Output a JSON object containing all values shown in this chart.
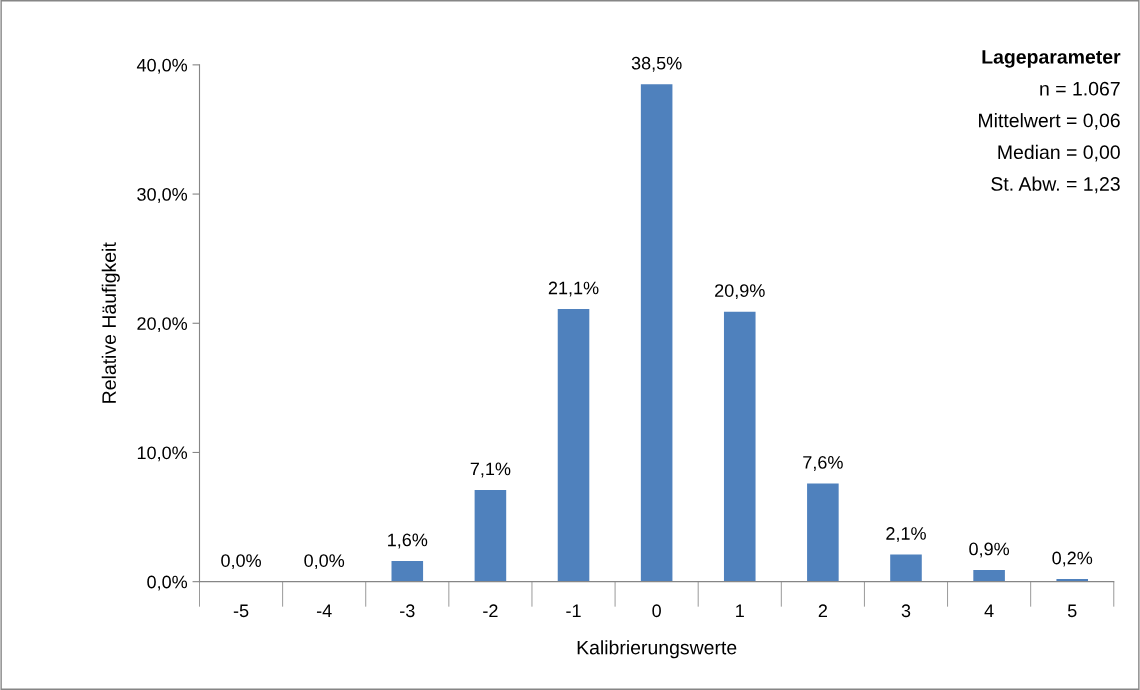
{
  "chart_data": {
    "type": "bar",
    "xlabel": "Kalibrierungswerte",
    "ylabel": "Relative Häufigkeit",
    "categories": [
      "-5",
      "-4",
      "-3",
      "-2",
      "-1",
      "0",
      "1",
      "2",
      "3",
      "4",
      "5"
    ],
    "values": [
      0.0,
      0.0,
      1.6,
      7.1,
      21.1,
      38.5,
      20.9,
      7.6,
      2.1,
      0.9,
      0.2
    ],
    "value_labels": [
      "0,0%",
      "0,0%",
      "1,6%",
      "7,1%",
      "21,1%",
      "38,5%",
      "20,9%",
      "7,6%",
      "2,1%",
      "0,9%",
      "0,2%"
    ],
    "color": "#4f81bd",
    "ylim": [
      0,
      40
    ],
    "yticks": [
      {
        "value": 0,
        "label": "0,0%"
      },
      {
        "value": 10,
        "label": "10,0%"
      },
      {
        "value": 20,
        "label": "20,0%"
      },
      {
        "value": 30,
        "label": "30,0%"
      },
      {
        "value": 40,
        "label": "40,0%"
      }
    ],
    "grid": false,
    "annotations": [
      "Lageparameter",
      "n = 1.067",
      "Mittelwert = 0,06",
      "Median = 0,00",
      "St. Abw. = 1,23"
    ]
  }
}
